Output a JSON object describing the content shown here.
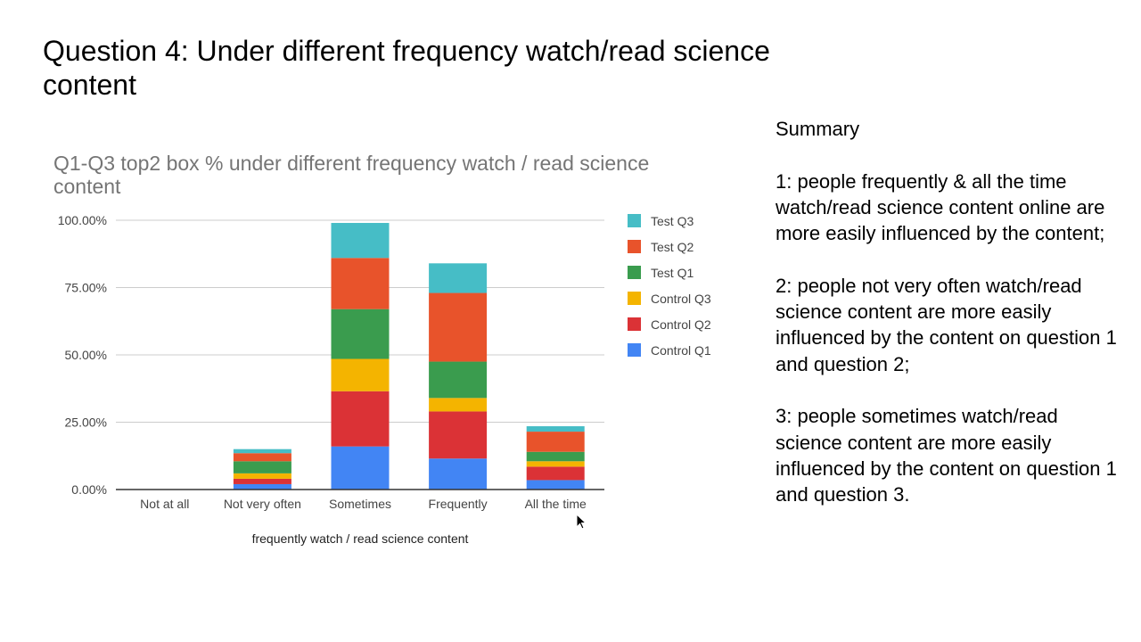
{
  "slide": {
    "title": "Question 4: Under different frequency watch/read science content"
  },
  "summary": {
    "heading": "Summary",
    "points": [
      "1: people frequently & all the time watch/read science content online are more easily influenced by the content;",
      "2: people not very often watch/read science content are more easily influenced by the content on question 1 and question 2;",
      "3: people sometimes watch/read science content are more easily influenced by the content on question 1 and question 3."
    ]
  },
  "chart_data": {
    "type": "bar",
    "stacked": true,
    "title": "Q1-Q3 top2 box % under different frequency watch / read science content",
    "xlabel": "frequently watch / read science content",
    "ylabel": "",
    "ylim": [
      0,
      100
    ],
    "yticks": [
      "0.00%",
      "25.00%",
      "50.00%",
      "75.00%",
      "100.00%"
    ],
    "ytick_values": [
      0,
      25,
      50,
      75,
      100
    ],
    "grid": true,
    "legend_position": "right",
    "categories": [
      "Not at all",
      "Not very often",
      "Sometimes",
      "Frequently",
      "All the time"
    ],
    "series": [
      {
        "name": "Control Q1",
        "color": "#4285f4",
        "values": [
          0,
          2,
          16,
          11.5,
          3.5
        ]
      },
      {
        "name": "Control Q2",
        "color": "#db3236",
        "values": [
          0,
          2,
          20.5,
          17.5,
          5
        ]
      },
      {
        "name": "Control Q3",
        "color": "#f4b400",
        "values": [
          0,
          2,
          12,
          5,
          2
        ]
      },
      {
        "name": "Test Q1",
        "color": "#3a9c4e",
        "values": [
          0,
          4.5,
          18.5,
          13.5,
          3.5
        ]
      },
      {
        "name": "Test Q2",
        "color": "#e8532b",
        "values": [
          0,
          3,
          19,
          25.5,
          7.5
        ]
      },
      {
        "name": "Test Q3",
        "color": "#46bdc6",
        "values": [
          0,
          1.5,
          13,
          11,
          2
        ]
      }
    ]
  }
}
